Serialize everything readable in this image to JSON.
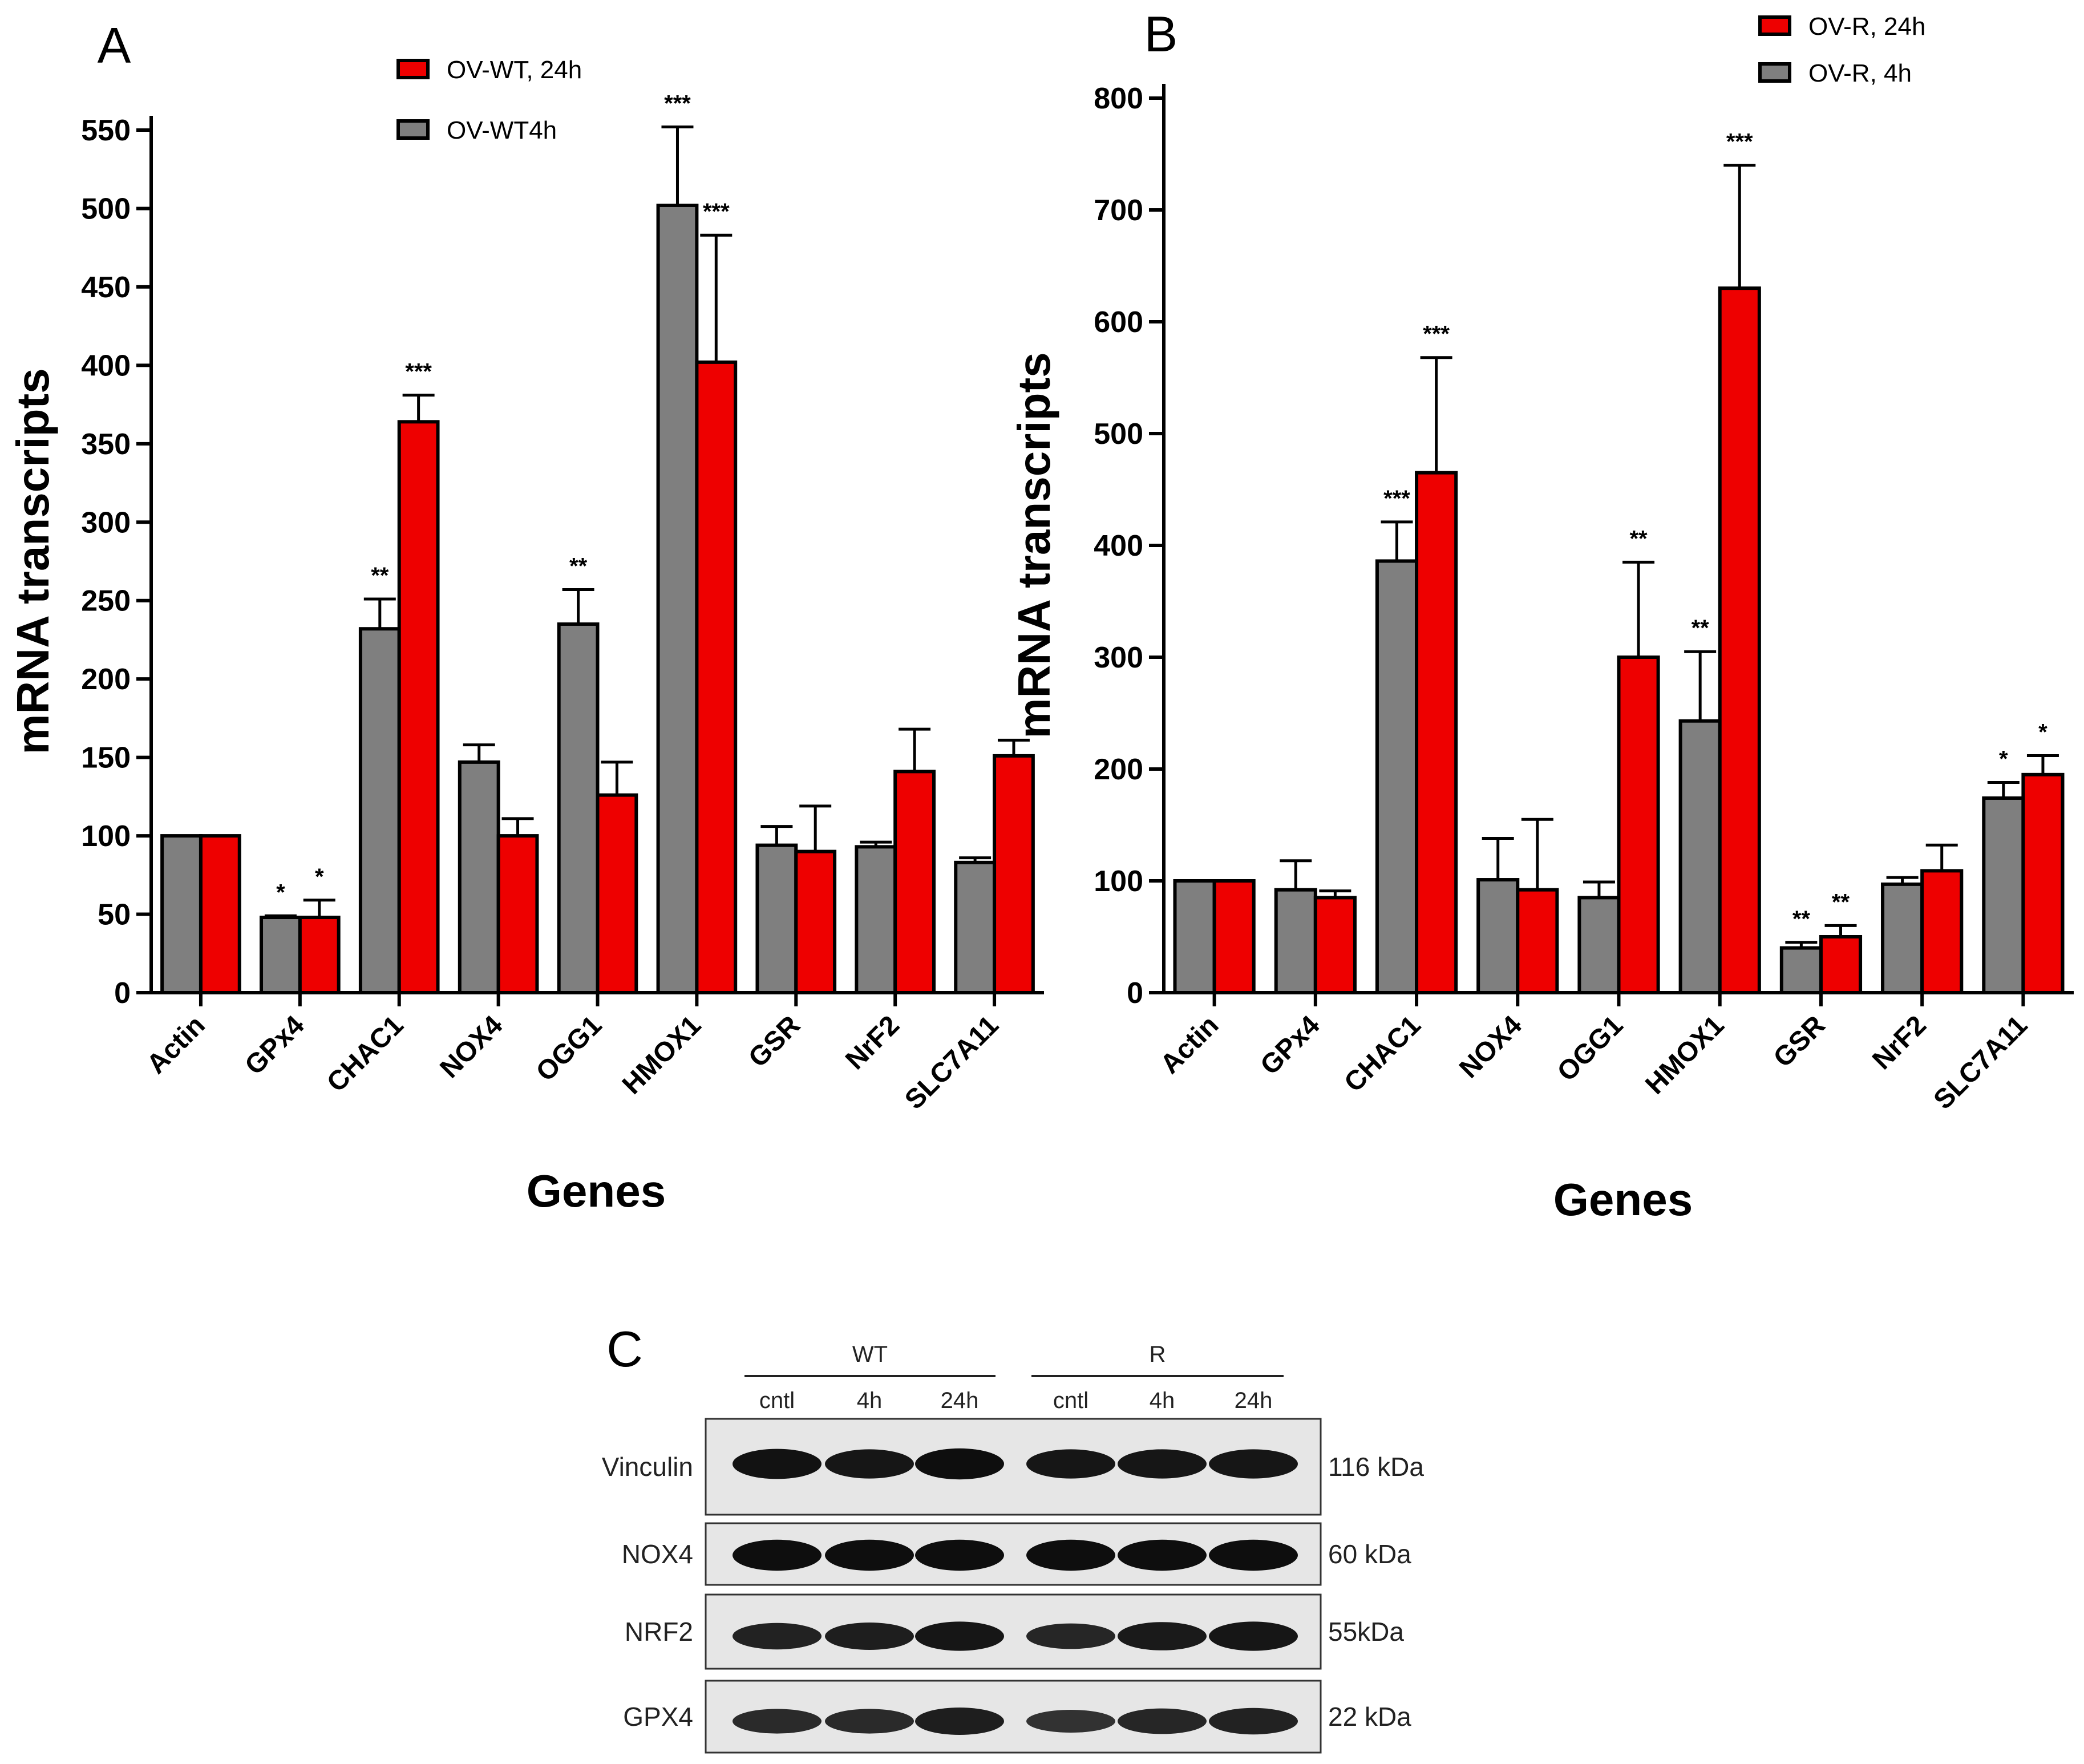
{
  "colors": {
    "red": "#ee0000",
    "gray": "#7f7f7f",
    "axis": "#000000"
  },
  "panel_c": {
    "letter": "C",
    "groups": [
      "WT",
      "R"
    ],
    "lanes": [
      "cntl",
      "4h",
      "24h",
      "cntl",
      "4h",
      "24h"
    ],
    "rows": [
      {
        "protein": "Vinculin",
        "size": "116 kDa",
        "band_intensity": [
          0.9,
          0.85,
          0.95,
          0.85,
          0.85,
          0.85
        ]
      },
      {
        "protein": "NOX4",
        "size": "60 kDa",
        "band_intensity": [
          0.95,
          0.95,
          0.95,
          0.95,
          0.95,
          0.95
        ]
      },
      {
        "protein": "NRF2",
        "size": "55kDa",
        "band_intensity": [
          0.7,
          0.75,
          0.85,
          0.65,
          0.8,
          0.85
        ]
      },
      {
        "protein": "GPX4",
        "size": "22 kDa",
        "band_intensity": [
          0.6,
          0.6,
          0.75,
          0.5,
          0.65,
          0.7
        ]
      }
    ]
  },
  "chart_data": [
    {
      "panel": "A",
      "type": "bar",
      "xlabel": "Genes",
      "ylabel": "mRNA transcripts",
      "ylim": [
        0,
        550
      ],
      "yticks": [
        0,
        50,
        100,
        150,
        200,
        250,
        300,
        350,
        400,
        450,
        500,
        550
      ],
      "categories": [
        "Actin",
        "GPx4",
        "CHAC1",
        "NOX4",
        "OGG1",
        "HMOX1",
        "GSR",
        "NrF2",
        "SLC7A11"
      ],
      "legend": [
        "OV-WT, 24h",
        "OV-WT4h"
      ],
      "series": [
        {
          "name": "OV-WT4h",
          "color": "#7f7f7f",
          "values": [
            100,
            48,
            232,
            147,
            235,
            502,
            94,
            93,
            83
          ],
          "errors": [
            0,
            1,
            19,
            11,
            22,
            50,
            12,
            3,
            3
          ],
          "stars": [
            "",
            "*",
            "**",
            "",
            "**",
            "***",
            "",
            "",
            ""
          ]
        },
        {
          "name": "OV-WT, 24h",
          "color": "#ee0000",
          "values": [
            100,
            48,
            364,
            100,
            126,
            402,
            90,
            141,
            151
          ],
          "errors": [
            0,
            11,
            17,
            11,
            21,
            81,
            29,
            27,
            10
          ],
          "stars": [
            "",
            "*",
            "***",
            "",
            "",
            "***",
            "",
            "",
            ""
          ]
        }
      ]
    },
    {
      "panel": "B",
      "type": "bar",
      "xlabel": "Genes",
      "ylabel": "mRNA transcripts",
      "ylim": [
        0,
        800
      ],
      "yticks": [
        0,
        100,
        200,
        300,
        400,
        500,
        600,
        700,
        800
      ],
      "categories": [
        "Actin",
        "GPx4",
        "CHAC1",
        "NOX4",
        "OGG1",
        "HMOX1",
        "GSR",
        "NrF2",
        "SLC7A11"
      ],
      "legend": [
        "OV-R, 24h",
        "OV-R, 4h"
      ],
      "series": [
        {
          "name": "OV-R, 4h",
          "color": "#7f7f7f",
          "values": [
            100,
            92,
            386,
            101,
            85,
            243,
            40,
            97,
            174
          ],
          "errors": [
            0,
            26,
            35,
            37,
            14,
            62,
            5,
            6,
            14
          ],
          "stars": [
            "",
            "",
            "***",
            "",
            "",
            "**",
            "**",
            "",
            "*"
          ]
        },
        {
          "name": "OV-R, 24h",
          "color": "#ee0000",
          "values": [
            100,
            85,
            465,
            92,
            300,
            630,
            50,
            109,
            195
          ],
          "errors": [
            0,
            6,
            103,
            63,
            85,
            110,
            10,
            23,
            17
          ],
          "stars": [
            "",
            "",
            "***",
            "",
            "**",
            "***",
            "**",
            "",
            "*"
          ]
        }
      ]
    }
  ]
}
